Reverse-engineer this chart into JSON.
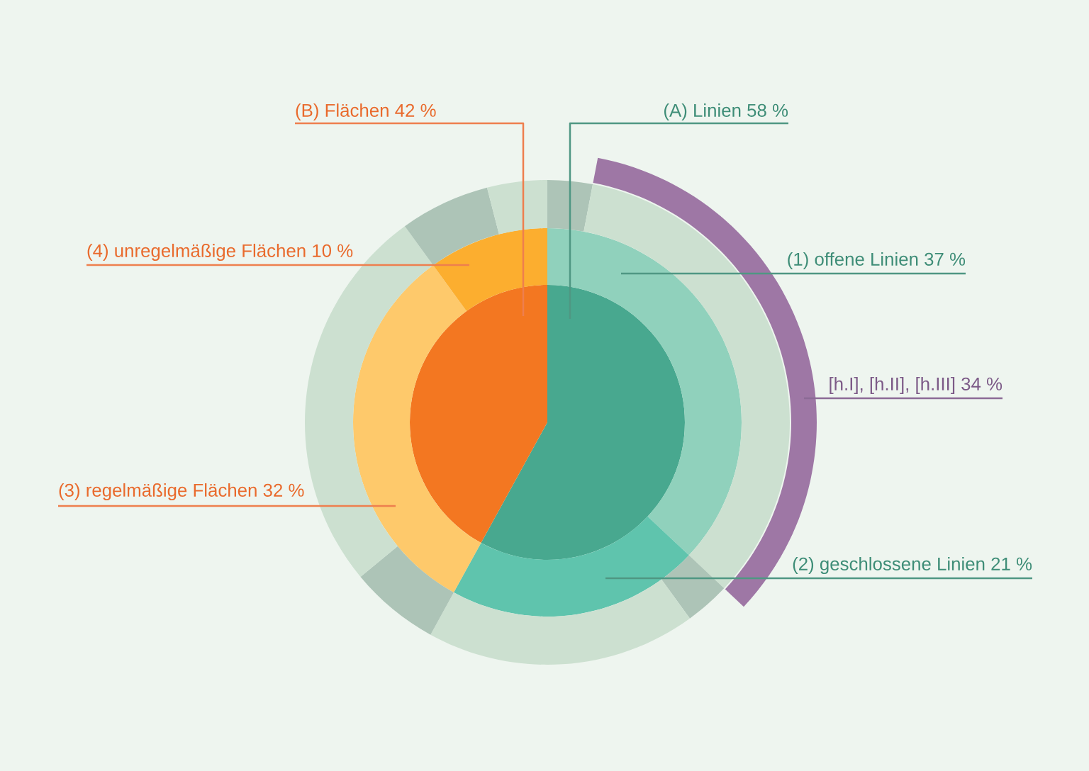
{
  "chart_data": {
    "type": "pie",
    "series": [
      {
        "values": [
          58,
          42
        ],
        "value_labels": [
          "(A) Linien 58 %",
          "(B) Flächen 42 %"
        ],
        "colors": [
          "#48a88f",
          "#f37721"
        ]
      },
      {
        "values": [
          37,
          21,
          32,
          10
        ],
        "value_labels": [
          "(1) offene Linien 37 %",
          "(2) geschlossene Linien 21 %",
          "(3) regelmäßige Flächen 32 %",
          "(4) unregelmäßige Flächen 10 %"
        ],
        "colors": [
          "#90d1bc",
          "#5fc4ad",
          "#fec96b",
          "#fcae2f"
        ]
      },
      {
        "values": [
          3,
          34,
          3,
          18,
          6,
          26,
          6,
          4
        ],
        "value_labels": [
          null,
          "[h.I], [h.II], [h.III] 34 %",
          null,
          null,
          null,
          null,
          null,
          null
        ],
        "colors": [
          "#adc4b7",
          "#cce0d0",
          "#adc4b7",
          "#cce0d0",
          "#adc4b7",
          "#cce0d0",
          "#adc4b7",
          "#cce0d0"
        ]
      }
    ]
  }
}
